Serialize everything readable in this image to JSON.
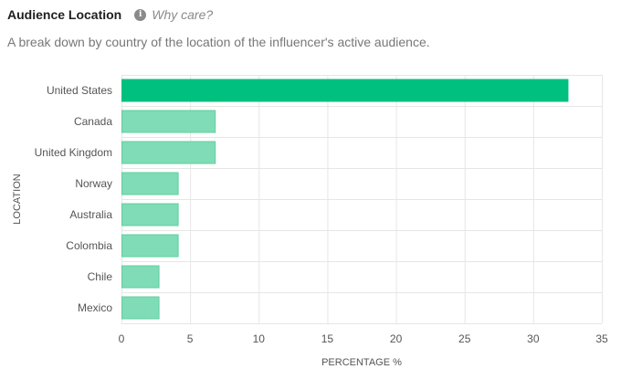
{
  "header": {
    "title": "Audience Location",
    "why_care": "Why care?",
    "info_icon": "info-icon"
  },
  "subtitle": "A break down by country of the location of the influencer's active audience.",
  "colors": {
    "highlight": "#00c07f",
    "bar": "#7fdcb6",
    "bar_stroke": "#5fcf9f",
    "grid": "#e6e6e6",
    "axis_text": "#555555"
  },
  "chart_data": {
    "type": "bar",
    "orientation": "horizontal",
    "categories": [
      "United States",
      "Canada",
      "United Kingdom",
      "Norway",
      "Australia",
      "Colombia",
      "Chile",
      "Mexico"
    ],
    "values": [
      32.5,
      6.8,
      6.8,
      4.1,
      4.1,
      4.1,
      2.7,
      2.7
    ],
    "highlight_index": 0,
    "xlabel": "PERCENTAGE %",
    "ylabel": "LOCATION",
    "xlim": [
      0,
      35
    ],
    "xticks": [
      0,
      5,
      10,
      15,
      20,
      25,
      30,
      35
    ],
    "grid": true
  }
}
